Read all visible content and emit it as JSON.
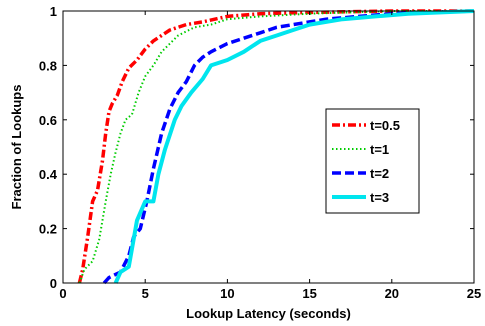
{
  "chart_data": {
    "type": "line",
    "title": "",
    "xlabel": "Lookup Latency (seconds)",
    "ylabel": "Fraction of Lookups",
    "xlim": [
      0,
      25
    ],
    "ylim": [
      0,
      1
    ],
    "xticks": [
      0,
      5,
      10,
      15,
      20,
      25
    ],
    "yticks": [
      0,
      0.2,
      0.4,
      0.6,
      0.8,
      1
    ],
    "xtick_labels": [
      "0",
      "5",
      "10",
      "15",
      "20",
      "25"
    ],
    "ytick_labels": [
      "0",
      "0.2",
      "0.4",
      "0.6",
      "0.8",
      "1"
    ],
    "grid": false,
    "legend_position": "center-right",
    "series": [
      {
        "name": "t=0.5",
        "color": "#ff0000",
        "style": "dashdot",
        "points": [
          [
            1.0,
            0
          ],
          [
            1.2,
            0.05
          ],
          [
            1.5,
            0.17
          ],
          [
            1.8,
            0.3
          ],
          [
            2.1,
            0.34
          ],
          [
            2.4,
            0.45
          ],
          [
            2.6,
            0.55
          ],
          [
            2.8,
            0.63
          ],
          [
            3.0,
            0.66
          ],
          [
            3.3,
            0.69
          ],
          [
            3.6,
            0.74
          ],
          [
            4.0,
            0.79
          ],
          [
            4.5,
            0.82
          ],
          [
            5.0,
            0.86
          ],
          [
            5.5,
            0.89
          ],
          [
            6.0,
            0.91
          ],
          [
            6.5,
            0.93
          ],
          [
            7.5,
            0.95
          ],
          [
            8.5,
            0.96
          ],
          [
            10,
            0.98
          ],
          [
            12,
            0.99
          ],
          [
            15,
            0.995
          ],
          [
            20,
            1.0
          ],
          [
            25,
            1.0
          ]
        ]
      },
      {
        "name": "t=1",
        "color": "#00cc00",
        "style": "dotted",
        "points": [
          [
            1.0,
            0
          ],
          [
            1.3,
            0.05
          ],
          [
            1.8,
            0.08
          ],
          [
            2.2,
            0.16
          ],
          [
            2.6,
            0.3
          ],
          [
            2.9,
            0.4
          ],
          [
            3.2,
            0.48
          ],
          [
            3.5,
            0.55
          ],
          [
            3.8,
            0.6
          ],
          [
            4.2,
            0.62
          ],
          [
            4.6,
            0.7
          ],
          [
            5.0,
            0.76
          ],
          [
            5.5,
            0.8
          ],
          [
            6.0,
            0.85
          ],
          [
            6.5,
            0.88
          ],
          [
            7.0,
            0.91
          ],
          [
            8.0,
            0.94
          ],
          [
            9.0,
            0.95
          ],
          [
            10,
            0.97
          ],
          [
            12,
            0.98
          ],
          [
            15,
            0.99
          ],
          [
            20,
            1.0
          ],
          [
            25,
            1.0
          ]
        ]
      },
      {
        "name": "t=2",
        "color": "#0000ff",
        "style": "dashed",
        "points": [
          [
            2.5,
            0
          ],
          [
            2.8,
            0.02
          ],
          [
            3.5,
            0.04
          ],
          [
            4.0,
            0.1
          ],
          [
            4.3,
            0.17
          ],
          [
            4.7,
            0.2
          ],
          [
            5.1,
            0.3
          ],
          [
            5.5,
            0.42
          ],
          [
            6.0,
            0.55
          ],
          [
            6.5,
            0.64
          ],
          [
            7.0,
            0.7
          ],
          [
            7.5,
            0.74
          ],
          [
            8.0,
            0.8
          ],
          [
            8.5,
            0.83
          ],
          [
            9.0,
            0.85
          ],
          [
            10,
            0.88
          ],
          [
            11,
            0.9
          ],
          [
            12,
            0.92
          ],
          [
            13,
            0.94
          ],
          [
            14,
            0.95
          ],
          [
            16,
            0.97
          ],
          [
            18,
            0.98
          ],
          [
            20,
            0.99
          ],
          [
            25,
            1.0
          ]
        ]
      },
      {
        "name": "t=3",
        "color": "#00e5ee",
        "style": "solid",
        "points": [
          [
            3.2,
            0
          ],
          [
            3.5,
            0.04
          ],
          [
            4.0,
            0.06
          ],
          [
            4.5,
            0.23
          ],
          [
            5.0,
            0.3
          ],
          [
            5.5,
            0.3
          ],
          [
            5.8,
            0.4
          ],
          [
            6.2,
            0.49
          ],
          [
            6.8,
            0.6
          ],
          [
            7.2,
            0.65
          ],
          [
            7.8,
            0.7
          ],
          [
            8.5,
            0.75
          ],
          [
            9.0,
            0.8
          ],
          [
            10,
            0.82
          ],
          [
            11,
            0.85
          ],
          [
            12,
            0.89
          ],
          [
            13,
            0.91
          ],
          [
            14,
            0.93
          ],
          [
            15,
            0.95
          ],
          [
            17,
            0.97
          ],
          [
            19,
            0.98
          ],
          [
            21,
            0.99
          ],
          [
            25,
            1.0
          ]
        ]
      }
    ]
  }
}
